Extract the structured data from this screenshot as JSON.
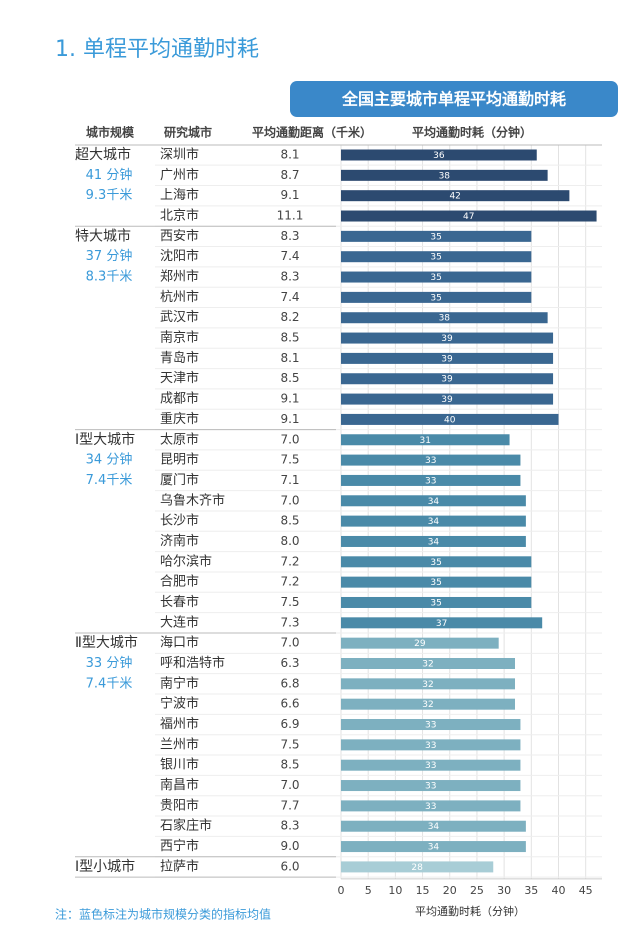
{
  "title": "1. 单程平均通勤时耗",
  "chart_data": {
    "type": "bar",
    "title": "全国主要城市单程平均通勤时耗",
    "columns": [
      "城市规模",
      "研究城市",
      "平均通勤距离（千米）",
      "平均通勤时耗（分钟）"
    ],
    "groups": [
      {
        "name": "超大城市",
        "time_label": "41 分钟",
        "distance_label": "9.3千米",
        "color": "#2c4a70",
        "categories": [
          "深圳市",
          "广州市",
          "上海市",
          "北京市"
        ],
        "distances": [
          "8.1",
          "8.7",
          "9.1",
          "11.1"
        ],
        "values": [
          36,
          38,
          42,
          47
        ]
      },
      {
        "name": "特大城市",
        "time_label": "37 分钟",
        "distance_label": "8.3千米",
        "color": "#3a6791",
        "categories": [
          "西安市",
          "沈阳市",
          "郑州市",
          "杭州市",
          "武汉市",
          "南京市",
          "青岛市",
          "天津市",
          "成都市",
          "重庆市"
        ],
        "distances": [
          "8.3",
          "7.4",
          "8.3",
          "7.4",
          "8.2",
          "8.5",
          "8.1",
          "8.5",
          "9.1",
          "9.1"
        ],
        "values": [
          35,
          35,
          35,
          35,
          38,
          39,
          39,
          39,
          39,
          40
        ]
      },
      {
        "name": "Ⅰ型大城市",
        "time_label": "34 分钟",
        "distance_label": "7.4千米",
        "color": "#4a8aa8",
        "categories": [
          "太原市",
          "昆明市",
          "厦门市",
          "乌鲁木齐市",
          "长沙市",
          "济南市",
          "哈尔滨市",
          "合肥市",
          "长春市",
          "大连市"
        ],
        "distances": [
          "7.0",
          "7.5",
          "7.1",
          "7.0",
          "8.5",
          "8.0",
          "7.2",
          "7.2",
          "7.5",
          "7.3"
        ],
        "values": [
          31,
          33,
          33,
          34,
          34,
          34,
          35,
          35,
          35,
          37
        ]
      },
      {
        "name": "Ⅱ型大城市",
        "time_label": "33 分钟",
        "distance_label": "7.4千米",
        "color": "#7db0c0",
        "categories": [
          "海口市",
          "呼和浩特市",
          "南宁市",
          "宁波市",
          "福州市",
          "兰州市",
          "银川市",
          "南昌市",
          "贵阳市",
          "石家庄市",
          "西宁市"
        ],
        "distances": [
          "7.0",
          "6.3",
          "6.8",
          "6.6",
          "6.9",
          "7.5",
          "8.5",
          "7.0",
          "7.7",
          "8.3",
          "9.0"
        ],
        "values": [
          29,
          32,
          32,
          32,
          33,
          33,
          33,
          33,
          33,
          34,
          34
        ]
      },
      {
        "name": "Ⅰ型小城市",
        "color": "#a8cdd6",
        "categories": [
          "拉萨市"
        ],
        "distances": [
          "6.0"
        ],
        "values": [
          28
        ]
      }
    ],
    "xlim": [
      0,
      48
    ],
    "xticks": [
      0,
      5,
      10,
      15,
      20,
      25,
      30,
      35,
      40,
      45
    ],
    "grid": true,
    "xlabel": "平均通勤时耗（分钟）"
  },
  "note": "注：蓝色标注为城市规模分类的指标均值"
}
